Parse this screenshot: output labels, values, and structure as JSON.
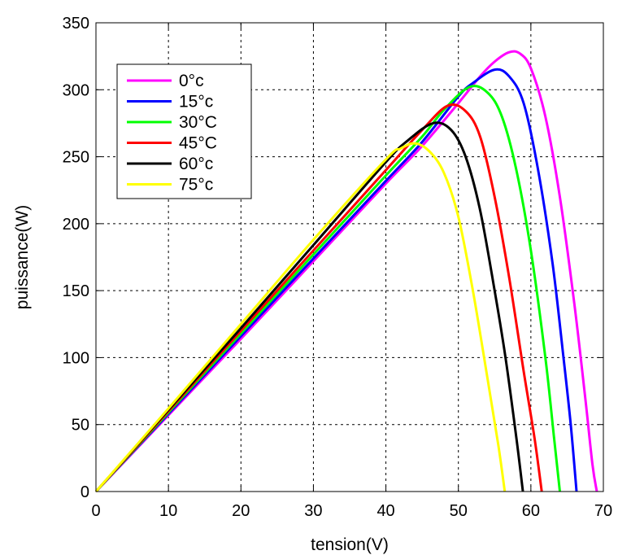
{
  "chart_data": {
    "type": "line",
    "title": "",
    "xlabel": "tension(V)",
    "ylabel": "puissance(W)",
    "xlim": [
      0,
      70
    ],
    "ylim": [
      0,
      350
    ],
    "xticks": [
      0,
      10,
      20,
      30,
      40,
      50,
      60,
      70
    ],
    "yticks": [
      0,
      50,
      100,
      150,
      200,
      250,
      300,
      350
    ],
    "grid": true,
    "legend_position": "top-left",
    "series": [
      {
        "name": "0°c",
        "color": "#ff00ff",
        "x": [
          0,
          10,
          20,
          30,
          40,
          45,
          50,
          53,
          55,
          57,
          58.5,
          60,
          62,
          64,
          66,
          67.5,
          68.5,
          69.1
        ],
        "y": [
          0,
          57,
          114,
          172,
          230,
          258,
          290,
          310,
          321,
          328,
          327,
          316,
          280,
          220,
          140,
          70,
          20,
          0
        ]
      },
      {
        "name": "15°c",
        "color": "#0000ff",
        "x": [
          0,
          10,
          20,
          30,
          40,
          45,
          50,
          52,
          55,
          57,
          59,
          61,
          63,
          64.5,
          65.5,
          66.3
        ],
        "y": [
          0,
          58,
          116,
          174,
          232,
          261,
          295,
          305,
          315,
          310,
          290,
          240,
          170,
          100,
          50,
          0
        ]
      },
      {
        "name": "30°C",
        "color": "#00ff00",
        "x": [
          0,
          10,
          20,
          30,
          40,
          45,
          48,
          51.5,
          54,
          56,
          58,
          60,
          62,
          63.2,
          64
        ],
        "y": [
          0,
          59,
          118,
          177,
          236,
          265,
          285,
          302,
          298,
          280,
          240,
          180,
          100,
          40,
          0
        ]
      },
      {
        "name": "45°C",
        "color": "#ff0000",
        "x": [
          0,
          10,
          20,
          30,
          40,
          45,
          48.5,
          51,
          53,
          55,
          57,
          59,
          60.5,
          61.5
        ],
        "y": [
          0,
          60,
          120,
          180,
          240,
          270,
          288,
          284,
          265,
          220,
          160,
          90,
          40,
          0
        ]
      },
      {
        "name": "60°c",
        "color": "#000000",
        "x": [
          0,
          10,
          20,
          30,
          40,
          43,
          46.5,
          49,
          51,
          53,
          55,
          56.5,
          58,
          58.9
        ],
        "y": [
          0,
          61,
          122,
          184,
          246,
          262,
          275,
          270,
          250,
          210,
          150,
          100,
          40,
          0
        ]
      },
      {
        "name": "75°c",
        "color": "#ffff00",
        "x": [
          0,
          10,
          20,
          30,
          40,
          42,
          44,
          46,
          48,
          50,
          52,
          54,
          55.5,
          56.4
        ],
        "y": [
          0,
          62,
          125,
          188,
          248,
          256,
          260,
          254,
          238,
          205,
          150,
          85,
          35,
          0
        ]
      }
    ]
  }
}
